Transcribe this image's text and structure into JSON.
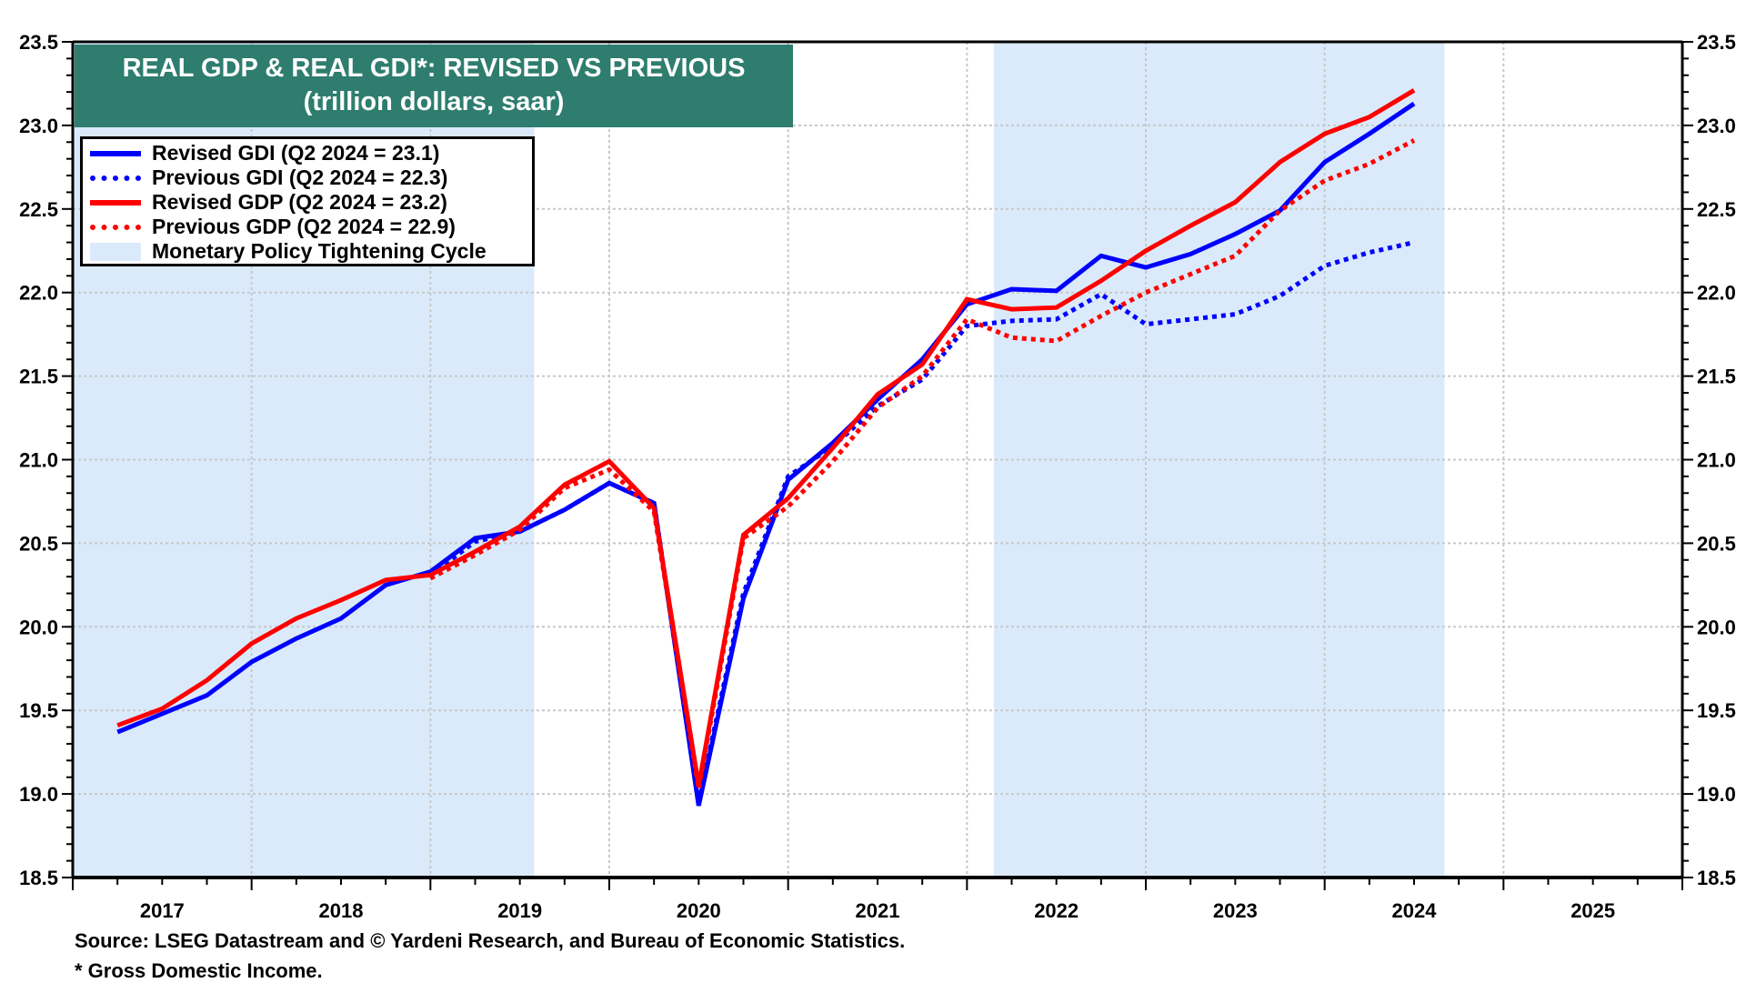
{
  "chart_data": {
    "type": "line",
    "title": "REAL GDP & REAL GDI*: REVISED VS PREVIOUS",
    "subtitle": "(trillion dollars, saar)",
    "xlabel": "",
    "ylabel": "",
    "xlim": [
      2017,
      2026
    ],
    "ylim": [
      18.5,
      23.5
    ],
    "y_ticks": [
      "18.5",
      "19.0",
      "19.5",
      "20.0",
      "20.5",
      "21.0",
      "21.5",
      "22.0",
      "22.5",
      "23.0",
      "23.5"
    ],
    "y_tick_values": [
      18.5,
      19.0,
      19.5,
      20.0,
      20.5,
      21.0,
      21.5,
      22.0,
      22.5,
      23.0,
      23.5
    ],
    "x_ticks": [
      "2017",
      "2018",
      "2019",
      "2020",
      "2021",
      "2022",
      "2023",
      "2024",
      "2025"
    ],
    "grid": true,
    "dual_y_axis": true,
    "legend_position": "top-left",
    "x": [
      "Q1 2017",
      "Q2 2017",
      "Q3 2017",
      "Q4 2017",
      "Q1 2018",
      "Q2 2018",
      "Q3 2018",
      "Q4 2018",
      "Q1 2019",
      "Q2 2019",
      "Q3 2019",
      "Q4 2019",
      "Q1 2020",
      "Q2 2020",
      "Q3 2020",
      "Q4 2020",
      "Q1 2021",
      "Q2 2021",
      "Q3 2021",
      "Q4 2021",
      "Q1 2022",
      "Q2 2022",
      "Q3 2022",
      "Q4 2022",
      "Q1 2023",
      "Q2 2023",
      "Q3 2023",
      "Q4 2023",
      "Q1 2024",
      "Q2 2024"
    ],
    "x_decimal": [
      2017.25,
      2017.5,
      2017.75,
      2018.0,
      2018.25,
      2018.5,
      2018.75,
      2019.0,
      2019.25,
      2019.5,
      2019.75,
      2020.0,
      2020.25,
      2020.5,
      2020.75,
      2021.0,
      2021.25,
      2021.5,
      2021.75,
      2022.0,
      2022.25,
      2022.5,
      2022.75,
      2023.0,
      2023.25,
      2023.5,
      2023.75,
      2024.0,
      2024.25,
      2024.5
    ],
    "series": [
      {
        "name": "Revised GDI (Q2 2024 = 23.1)",
        "color": "#0000FF",
        "style": "solid",
        "values": [
          19.37,
          19.48,
          19.59,
          19.79,
          19.93,
          20.05,
          20.25,
          20.33,
          20.53,
          20.57,
          20.7,
          20.86,
          20.74,
          18.93,
          20.17,
          20.88,
          21.1,
          21.36,
          21.6,
          21.93,
          22.02,
          22.01,
          22.22,
          22.15,
          22.23,
          22.35,
          22.49,
          22.78,
          22.95,
          23.13
        ]
      },
      {
        "name": "Previous GDI (Q2 2024 = 22.3)",
        "color": "#0000FF",
        "style": "dotted",
        "values": [
          null,
          null,
          null,
          null,
          null,
          null,
          null,
          20.31,
          20.51,
          20.57,
          20.7,
          20.86,
          20.74,
          18.95,
          20.2,
          20.9,
          21.08,
          21.32,
          21.48,
          21.8,
          21.83,
          21.84,
          21.99,
          21.81,
          21.84,
          21.87,
          21.98,
          22.16,
          22.24,
          22.3
        ]
      },
      {
        "name": "Revised GDP (Q2 2024 = 23.2)",
        "color": "#FF0000",
        "style": "solid",
        "values": [
          19.41,
          19.51,
          19.68,
          19.9,
          20.05,
          20.16,
          20.28,
          20.31,
          20.45,
          20.6,
          20.85,
          20.99,
          20.71,
          19.05,
          20.55,
          20.77,
          21.07,
          21.39,
          21.57,
          21.96,
          21.9,
          21.91,
          22.07,
          22.25,
          22.4,
          22.54,
          22.78,
          22.95,
          23.05,
          23.21
        ]
      },
      {
        "name": "Previous GDP (Q2 2024 = 22.9)",
        "color": "#FF0000",
        "style": "dotted",
        "values": [
          null,
          null,
          null,
          null,
          null,
          null,
          null,
          20.29,
          20.43,
          20.58,
          20.83,
          20.94,
          20.69,
          19.03,
          20.53,
          20.72,
          20.99,
          21.31,
          21.5,
          21.84,
          21.73,
          21.71,
          21.86,
          22.0,
          22.11,
          22.22,
          22.49,
          22.67,
          22.77,
          22.91
        ]
      }
    ],
    "shaded_regions": [
      {
        "label": "Monetary Policy Tightening Cycle",
        "start": 2017.0,
        "end": 2019.58,
        "color": "#DAEAFB"
      },
      {
        "label": "Monetary Policy Tightening Cycle",
        "start": 2022.15,
        "end": 2024.67,
        "color": "#DAEAFB"
      }
    ],
    "legend": [
      {
        "label": "Revised GDI (Q2 2024 = 23.1)",
        "swatch": "solid-blue"
      },
      {
        "label": "Previous GDI (Q2 2024 = 22.3)",
        "swatch": "dotted-blue"
      },
      {
        "label": "Revised GDP (Q2 2024 = 23.2)",
        "swatch": "solid-red"
      },
      {
        "label": "Previous GDP (Q2 2024 = 22.9)",
        "swatch": "dotted-red"
      },
      {
        "label": "Monetary Policy Tightening Cycle",
        "swatch": "shade"
      }
    ],
    "source": "Source: LSEG Datastream and © Yardeni Research, and Bureau of Economic Statistics.",
    "footnote": "* Gross Domestic Income."
  },
  "colors": {
    "title_bg": "#2E7D6F",
    "shade": "#DAEAFB",
    "gdi": "#0000FF",
    "gdp": "#FF0000"
  }
}
